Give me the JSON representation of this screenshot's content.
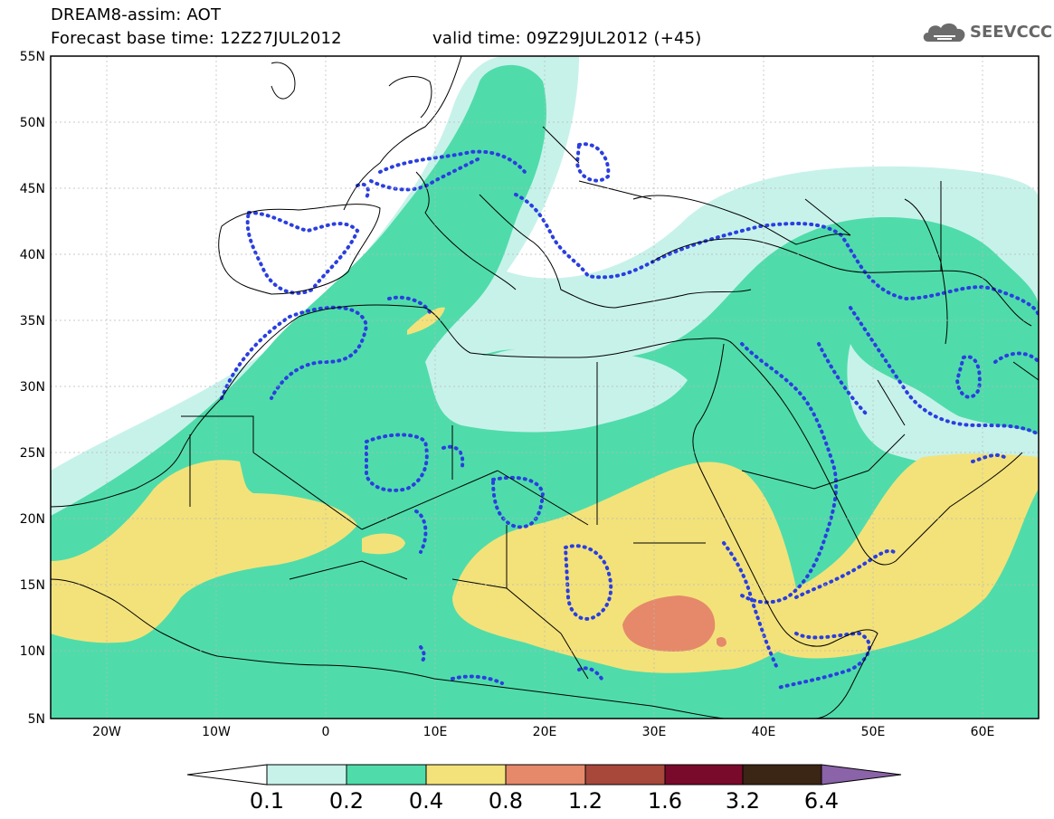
{
  "header": {
    "line1": "DREAM8-assim: AOT",
    "line2_base": "Forecast base time: 12Z27JUL2012",
    "line2_valid": "valid time: 09Z29JUL2012 (+45)"
  },
  "logo": {
    "text": "SEEVCCC",
    "icon": "cloud-icon"
  },
  "map": {
    "lon_range": [
      -25,
      65
    ],
    "lat_range": [
      5,
      55
    ],
    "lat_ticks": [
      "55N",
      "50N",
      "45N",
      "40N",
      "35N",
      "30N",
      "25N",
      "20N",
      "15N",
      "10N",
      "5N"
    ],
    "lon_ticks": [
      "20W",
      "10W",
      "0",
      "10E",
      "20E",
      "30E",
      "40E",
      "50E",
      "60E"
    ],
    "overlay": "blue dotted contours"
  },
  "colorbar": {
    "labels": [
      "0.1",
      "0.2",
      "0.4",
      "0.8",
      "1.2",
      "1.6",
      "3.2",
      "6.4"
    ],
    "colors": [
      "#c7f2ea",
      "#4fdcaa",
      "#f3e27a",
      "#e5896a",
      "#a7483b",
      "#7a0a2c",
      "#3b2515",
      "#8a63a8"
    ],
    "extend": "both",
    "left_extend_color": "#ffffff"
  }
}
